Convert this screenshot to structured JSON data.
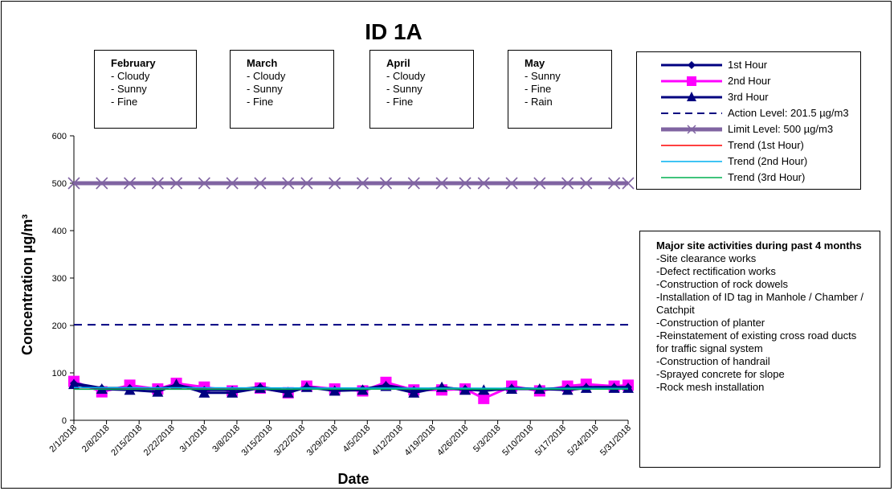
{
  "chart_data": {
    "type": "line",
    "title": "ID 1A",
    "xlabel": "Date",
    "ylabel": "Concentration  µg/m³",
    "ylim": [
      0,
      600
    ],
    "yticks": [
      "0",
      "100",
      "200",
      "300",
      "400",
      "500",
      "600"
    ],
    "x_tick_labels": [
      "2/1/2018",
      "2/8/2018",
      "2/15/2018",
      "2/22/2018",
      "3/1/2018",
      "3/8/2018",
      "3/15/2018",
      "3/22/2018",
      "3/29/2018",
      "4/5/2018",
      "4/12/2018",
      "4/19/2018",
      "4/26/2018",
      "5/3/2018",
      "5/10/2018",
      "5/17/2018",
      "5/24/2018",
      "5/31/2018"
    ],
    "x": [
      "2/1/2018",
      "2/7/2018",
      "2/13/2018",
      "2/19/2018",
      "2/23/2018",
      "3/1/2018",
      "3/7/2018",
      "3/13/2018",
      "3/19/2018",
      "3/23/2018",
      "3/29/2018",
      "4/4/2018",
      "4/9/2018",
      "4/15/2018",
      "4/21/2018",
      "4/26/2018",
      "4/30/2018",
      "5/6/2018",
      "5/12/2018",
      "5/18/2018",
      "5/22/2018",
      "5/28/2018",
      "5/31/2018"
    ],
    "series": [
      {
        "name": "1st Hour",
        "color": "#000080",
        "marker": "diamond",
        "values": [
          78,
          68,
          68,
          66,
          74,
          64,
          64,
          70,
          62,
          70,
          64,
          66,
          74,
          64,
          68,
          66,
          62,
          68,
          66,
          68,
          70,
          70,
          70
        ]
      },
      {
        "name": "2nd Hour",
        "color": "#ff00ff",
        "marker": "square",
        "values": [
          82,
          60,
          74,
          66,
          78,
          70,
          62,
          68,
          58,
          72,
          66,
          62,
          80,
          64,
          64,
          66,
          46,
          72,
          62,
          72,
          76,
          72,
          74
        ]
      },
      {
        "name": "3rd Hour",
        "color": "#000080",
        "marker": "triangle",
        "values": [
          76,
          66,
          64,
          60,
          76,
          58,
          58,
          68,
          58,
          70,
          62,
          64,
          72,
          58,
          70,
          64,
          64,
          66,
          66,
          64,
          68,
          68,
          68
        ]
      },
      {
        "name": "Action Level: 201.5 µg/m3",
        "color": "#000080",
        "style": "dashed",
        "value": 201.5
      },
      {
        "name": "Limit Level: 500 µg/m3",
        "color": "#8064a2",
        "marker": "x",
        "value": 500
      },
      {
        "name": "Trend (1st Hour)",
        "color": "#ff0000"
      },
      {
        "name": "Trend (2nd Hour)",
        "color": "#00b0f0"
      },
      {
        "name": "Trend (3rd Hour)",
        "color": "#00b050"
      }
    ],
    "legend_position": "top-right"
  },
  "month_notes": [
    {
      "title": "February",
      "items": [
        "- Cloudy",
        "- Sunny",
        "- Fine"
      ]
    },
    {
      "title": "March",
      "items": [
        "- Cloudy",
        "- Sunny",
        "- Fine"
      ]
    },
    {
      "title": "April",
      "items": [
        "- Cloudy",
        "- Sunny",
        "- Fine"
      ]
    },
    {
      "title": "May",
      "items": [
        "- Sunny",
        "- Fine",
        "- Rain"
      ]
    }
  ],
  "activities": {
    "title": "Major site activities during past 4 months",
    "items": [
      "-Site clearance works",
      "-Defect rectification works",
      "-Construction of rock dowels",
      "-Installation of ID tag in Manhole / Chamber / Catchpit",
      "-Construction of planter",
      "-Reinstatement of existing cross road ducts for traffic signal system",
      "-Construction of handrail",
      "-Sprayed concrete for slope",
      "-Rock mesh installation"
    ]
  }
}
